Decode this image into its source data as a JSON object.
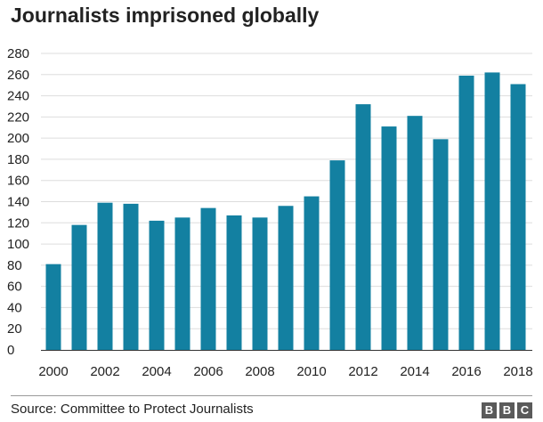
{
  "title": "Journalists imprisoned globally",
  "source": "Source: Committee to Protect Journalists",
  "logo": [
    "B",
    "B",
    "C"
  ],
  "colors": {
    "bar": "#1380A1",
    "grid": "#dddddd",
    "axis": "#333333"
  },
  "chart_data": {
    "type": "bar",
    "title": "Journalists imprisoned globally",
    "xlabel": "",
    "ylabel": "",
    "categories": [
      "2000",
      "2001",
      "2002",
      "2003",
      "2004",
      "2005",
      "2006",
      "2007",
      "2008",
      "2009",
      "2010",
      "2011",
      "2012",
      "2013",
      "2014",
      "2015",
      "2016",
      "2017",
      "2018"
    ],
    "values": [
      81,
      118,
      139,
      138,
      122,
      125,
      134,
      127,
      125,
      136,
      145,
      179,
      232,
      211,
      221,
      199,
      259,
      262,
      251
    ],
    "x_tick_labels": [
      "2000",
      "2002",
      "2004",
      "2006",
      "2008",
      "2010",
      "2012",
      "2014",
      "2016",
      "2018"
    ],
    "y_ticks": [
      0,
      20,
      40,
      60,
      80,
      100,
      120,
      140,
      160,
      180,
      200,
      220,
      240,
      260,
      280
    ],
    "ylim": [
      0,
      280
    ],
    "grid": true,
    "legend": "none"
  }
}
